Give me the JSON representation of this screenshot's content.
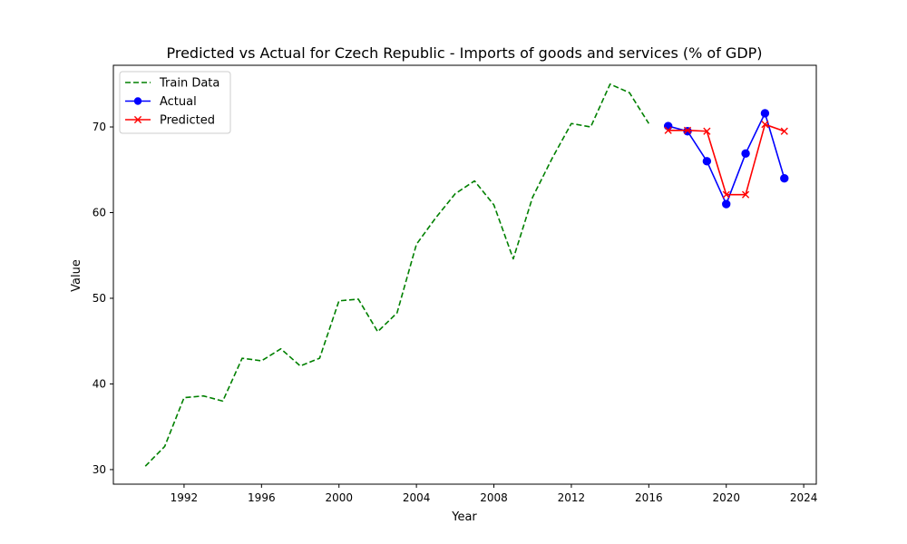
{
  "chart_data": {
    "type": "line",
    "title": "Predicted vs Actual for Czech Republic - Imports of goods and services (% of GDP)",
    "xlabel": "Year",
    "ylabel": "Value",
    "xlim": [
      1988.35,
      2024.65
    ],
    "ylim": [
      28.3,
      77.2
    ],
    "xticks": [
      1992,
      1996,
      2000,
      2004,
      2008,
      2012,
      2016,
      2020,
      2024
    ],
    "yticks": [
      30,
      40,
      50,
      60,
      70
    ],
    "grid": false,
    "legend_position": "top-left",
    "series": [
      {
        "name": "Train Data",
        "color": "#008000",
        "style": "dashed",
        "marker": "none",
        "x": [
          1990,
          1991,
          1992,
          1993,
          1994,
          1995,
          1996,
          1997,
          1998,
          1999,
          2000,
          2001,
          2002,
          2003,
          2004,
          2005,
          2006,
          2007,
          2008,
          2009,
          2010,
          2011,
          2012,
          2013,
          2014,
          2015,
          2016
        ],
        "y": [
          30.4,
          32.7,
          38.4,
          38.6,
          38.0,
          43.0,
          42.7,
          44.1,
          42.1,
          43.0,
          49.7,
          49.9,
          46.1,
          48.3,
          56.3,
          59.4,
          62.2,
          63.7,
          60.9,
          54.6,
          61.8,
          66.3,
          70.4,
          70.0,
          75.0,
          74.0,
          70.4
        ]
      },
      {
        "name": "Actual",
        "color": "#0000ff",
        "style": "solid",
        "marker": "circle",
        "x": [
          2017,
          2018,
          2019,
          2020,
          2021,
          2022,
          2023
        ],
        "y": [
          70.1,
          69.5,
          66.0,
          61.0,
          66.9,
          71.6,
          64.0
        ]
      },
      {
        "name": "Predicted",
        "color": "#ff0000",
        "style": "solid",
        "marker": "x",
        "x": [
          2017,
          2018,
          2019,
          2020,
          2021,
          2022,
          2023
        ],
        "y": [
          69.6,
          69.6,
          69.5,
          62.1,
          62.1,
          70.3,
          69.5
        ]
      }
    ]
  }
}
